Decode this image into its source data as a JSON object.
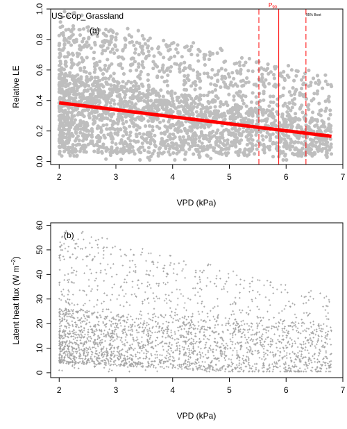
{
  "chart_data": [
    {
      "type": "scatter",
      "panel_label": "(a)",
      "site_label": "US-Cop_Grassland",
      "xlabel": "VPD (kPa)",
      "ylabel": "Relative LE",
      "xlim": [
        1.85,
        7.0
      ],
      "ylim": [
        -0.02,
        1.0
      ],
      "x_ticks": [
        2,
        3,
        4,
        5,
        6,
        7
      ],
      "y_ticks": [
        0.0,
        0.2,
        0.4,
        0.6,
        0.8,
        1.0
      ],
      "x_tick_labels": [
        "2",
        "3",
        "4",
        "5",
        "6",
        "7"
      ],
      "y_tick_labels": [
        "0.0",
        "0.2",
        "0.4",
        "0.6",
        "0.8",
        "1.0"
      ],
      "point_color": "#bebebe",
      "point_count_approx": 2600,
      "fit_line": {
        "color": "#ff0000",
        "x": [
          2.0,
          6.8
        ],
        "y": [
          0.385,
          0.165
        ]
      },
      "vertical_lines": [
        {
          "x": 5.52,
          "style": "dashed",
          "color": "#ff0000"
        },
        {
          "x": 5.87,
          "style": "solid",
          "color": "#ff0000",
          "label": "P",
          "label_sub": "90"
        },
        {
          "x": 6.35,
          "style": "dashed",
          "color": "#ff0000"
        }
      ],
      "annotation_text": "95% Boot"
    },
    {
      "type": "scatter",
      "panel_label": "(b)",
      "xlabel": "VPD (kPa)",
      "ylabel_main": "Latent heat flux (W m",
      "ylabel_sup": "−2",
      "ylabel_end": ")",
      "xlim": [
        1.85,
        7.0
      ],
      "ylim": [
        -2,
        61
      ],
      "x_ticks": [
        2,
        3,
        4,
        5,
        6,
        7
      ],
      "y_ticks": [
        0,
        10,
        20,
        30,
        40,
        50,
        60
      ],
      "x_tick_labels": [
        "2",
        "3",
        "4",
        "5",
        "6",
        "7"
      ],
      "y_tick_labels": [
        "0",
        "10",
        "20",
        "30",
        "40",
        "50",
        "60"
      ],
      "point_color": "#a0a0a0",
      "point_count_approx": 2600
    }
  ]
}
